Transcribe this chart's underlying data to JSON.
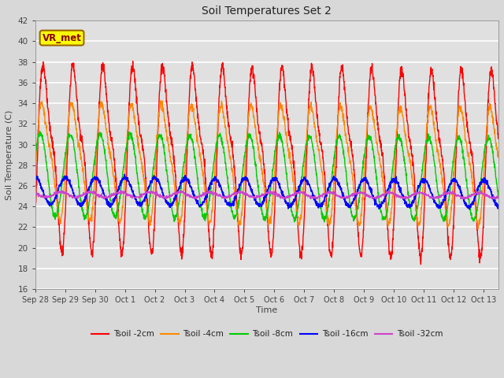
{
  "title": "Soil Temperatures Set 2",
  "xlabel": "Time",
  "ylabel": "Soil Temperature (C)",
  "ylim": [
    16,
    42
  ],
  "yticks": [
    16,
    18,
    20,
    22,
    24,
    26,
    28,
    30,
    32,
    34,
    36,
    38,
    40,
    42
  ],
  "fig_bg": "#d8d8d8",
  "plot_bg": "#e0e0e0",
  "series": [
    {
      "label": "Tsoil -2cm",
      "color": "#ff0000",
      "lw": 1.0
    },
    {
      "label": "Tsoil -4cm",
      "color": "#ff8800",
      "lw": 1.0
    },
    {
      "label": "Tsoil -8cm",
      "color": "#00cc00",
      "lw": 1.0
    },
    {
      "label": "Tsoil -16cm",
      "color": "#0000ff",
      "lw": 1.2
    },
    {
      "label": "Tsoil -32cm",
      "color": "#cc44cc",
      "lw": 1.0
    }
  ],
  "annotation_text": "VR_met",
  "annotation_bg": "#ffff00",
  "annotation_border": "#996600",
  "tick_labels": [
    "Sep 28",
    "Sep 29",
    "Sep 30",
    "Oct 1",
    "Oct 2",
    "Oct 3",
    "Oct 4",
    "Oct 5",
    "Oct 6",
    "Oct 7",
    "Oct 8",
    "Oct 9",
    "Oct 10",
    "Oct 11",
    "Oct 12",
    "Oct 13"
  ],
  "n_days": 15.5,
  "n_pts": 2000
}
